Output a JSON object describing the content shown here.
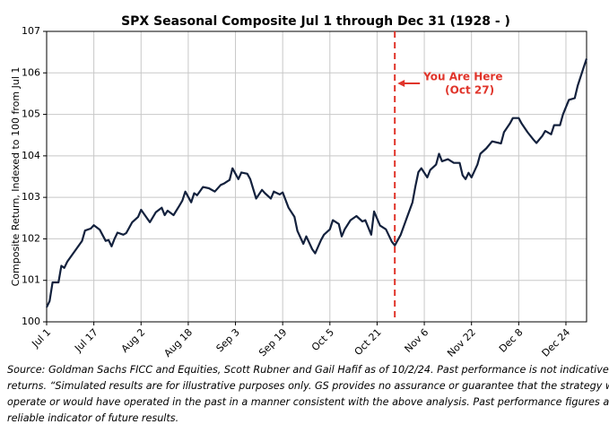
{
  "chart_data": {
    "type": "line",
    "title": "SPX Seasonal Composite Jul 1 through Dec 31 (1928 - )",
    "y_label": "Composite Return, Indexed to 100 from Jul 1",
    "color": "#13213d",
    "grid": true,
    "xlim": [
      0,
      183
    ],
    "xticks": [
      {
        "value": 0,
        "label": "Jul 1"
      },
      {
        "value": 16,
        "label": "Jul 17"
      },
      {
        "value": 32,
        "label": "Aug 2"
      },
      {
        "value": 48,
        "label": "Aug 18"
      },
      {
        "value": 64,
        "label": "Sep 3"
      },
      {
        "value": 80,
        "label": "Sep 19"
      },
      {
        "value": 96,
        "label": "Oct 5"
      },
      {
        "value": 112,
        "label": "Oct 21"
      },
      {
        "value": 128,
        "label": "Nov 6"
      },
      {
        "value": 144,
        "label": "Nov 22"
      },
      {
        "value": 160,
        "label": "Dec 8"
      },
      {
        "value": 176,
        "label": "Dec 24"
      }
    ],
    "ylim": [
      100,
      107
    ],
    "yticks": [
      100,
      101,
      102,
      103,
      104,
      105,
      106,
      107
    ],
    "x": [
      0,
      1,
      2,
      4,
      5,
      6,
      7,
      9,
      10,
      12,
      13,
      15,
      16,
      18,
      20,
      21,
      22,
      23,
      24,
      26,
      27,
      29,
      31,
      32,
      34,
      35,
      37,
      39,
      40,
      41,
      43,
      45,
      46,
      47,
      49,
      50,
      51,
      53,
      55,
      57,
      59,
      60,
      62,
      63,
      65,
      66,
      68,
      69,
      71,
      73,
      74,
      76,
      77,
      79,
      80,
      82,
      84,
      85,
      87,
      88,
      90,
      91,
      93,
      94,
      96,
      97,
      99,
      100,
      101,
      103,
      105,
      107,
      108,
      110,
      111,
      113,
      115,
      117,
      118,
      120,
      122,
      124,
      125,
      126,
      127,
      129,
      130,
      132,
      133,
      134,
      136,
      138,
      140,
      141,
      142,
      143,
      144,
      146,
      147,
      149,
      151,
      154,
      155,
      157,
      158,
      160,
      161,
      163,
      165,
      166,
      168,
      169,
      171,
      172,
      174,
      175,
      177,
      179,
      180,
      182,
      183
    ],
    "values": [
      100.35,
      100.5,
      100.95,
      100.95,
      101.35,
      101.3,
      101.45,
      101.65,
      101.75,
      101.95,
      102.2,
      102.25,
      102.33,
      102.22,
      101.95,
      101.97,
      101.82,
      102.0,
      102.15,
      102.1,
      102.14,
      102.4,
      102.53,
      102.7,
      102.5,
      102.4,
      102.64,
      102.75,
      102.57,
      102.68,
      102.57,
      102.8,
      102.92,
      103.14,
      102.88,
      103.1,
      103.05,
      103.25,
      103.22,
      103.14,
      103.3,
      103.33,
      103.42,
      103.7,
      103.44,
      103.6,
      103.57,
      103.44,
      102.97,
      103.18,
      103.1,
      102.97,
      103.14,
      103.07,
      103.12,
      102.75,
      102.53,
      102.19,
      101.88,
      102.06,
      101.75,
      101.65,
      101.97,
      102.1,
      102.23,
      102.45,
      102.36,
      102.06,
      102.23,
      102.45,
      102.55,
      102.42,
      102.45,
      102.1,
      102.66,
      102.32,
      102.23,
      101.93,
      101.84,
      102.1,
      102.49,
      102.88,
      103.27,
      103.61,
      103.7,
      103.48,
      103.66,
      103.79,
      104.05,
      103.87,
      103.92,
      103.83,
      103.83,
      103.53,
      103.44,
      103.59,
      103.48,
      103.79,
      104.05,
      104.18,
      104.35,
      104.3,
      104.57,
      104.78,
      104.91,
      104.91,
      104.78,
      104.57,
      104.39,
      104.31,
      104.48,
      104.6,
      104.52,
      104.74,
      104.74,
      105.0,
      105.35,
      105.39,
      105.69,
      106.13,
      106.34
    ],
    "annotation": {
      "x": 118,
      "color": "#e0342a",
      "text": [
        "You Are Here",
        "(Oct 27)"
      ]
    },
    "source": [
      "Source: Goldman Sachs FICC and Equities, Scott Rubner and Gail Hafif as of 10/2/24. Past performance is not indicative of future",
      "returns. “Simulated results are for illustrative purposes only. GS provides no assurance or guarantee that the strategy will",
      "operate or would have operated in the past in a manner consistent with the above analysis. Past performance figures are not a",
      "reliable indicator of future results."
    ]
  }
}
